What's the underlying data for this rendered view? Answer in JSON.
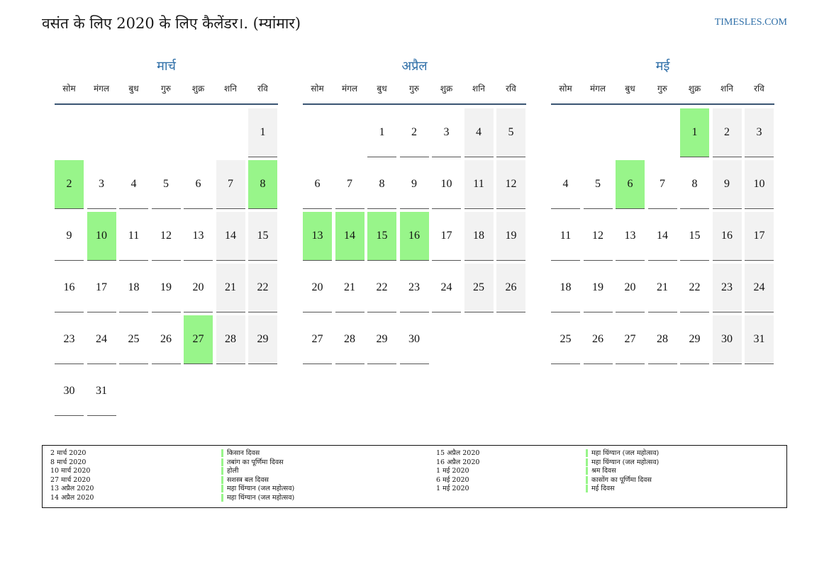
{
  "header": {
    "title": "वसंत के लिए 2020 के लिए कैलेंडर।. (म्यांमार)",
    "brand": "TIMESLES.COM"
  },
  "weekdays": [
    "सोम",
    "मंगल",
    "बुध",
    "गुरु",
    "शुक्र",
    "शनि",
    "रवि"
  ],
  "months": [
    {
      "name": "मार्च",
      "start_offset": 6,
      "days": 31,
      "holidays": [
        2,
        8,
        10,
        27
      ]
    },
    {
      "name": "अप्रैल",
      "start_offset": 2,
      "days": 30,
      "holidays": [
        13,
        14,
        15,
        16
      ]
    },
    {
      "name": "मई",
      "start_offset": 4,
      "days": 31,
      "holidays": [
        1,
        6
      ]
    }
  ],
  "legend": {
    "left": [
      {
        "date": "2 मार्च 2020",
        "name": "किसान दिवस"
      },
      {
        "date": "8 मार्च 2020",
        "name": "तबांग का पूर्णिमा दिवस"
      },
      {
        "date": "10 मार्च 2020",
        "name": "होली"
      },
      {
        "date": "27 मार्च 2020",
        "name": "सशस्त्र बल दिवस"
      },
      {
        "date": "13 अप्रैल 2020",
        "name": "महा थिंग्यान (जल महोत्सव)"
      },
      {
        "date": "14 अप्रैल 2020",
        "name": "महा थिंग्यान (जल महोत्सव)"
      }
    ],
    "right": [
      {
        "date": "15 अप्रैल 2020",
        "name": "महा थिंग्यान (जल महोत्सव)"
      },
      {
        "date": "16 अप्रैल 2020",
        "name": "महा थिंग्यान (जल महोत्सव)"
      },
      {
        "date": "1 मई 2020",
        "name": "श्रम दिवस"
      },
      {
        "date": "6 मई 2020",
        "name": "कासोंग का पूर्णिमा दिवस"
      },
      {
        "date": "1 मई 2020",
        "name": "मई दिवस"
      }
    ]
  },
  "colors": {
    "holiday": "#98f58a",
    "weekend": "#f2f2f2",
    "accent": "#2f6fa8"
  }
}
